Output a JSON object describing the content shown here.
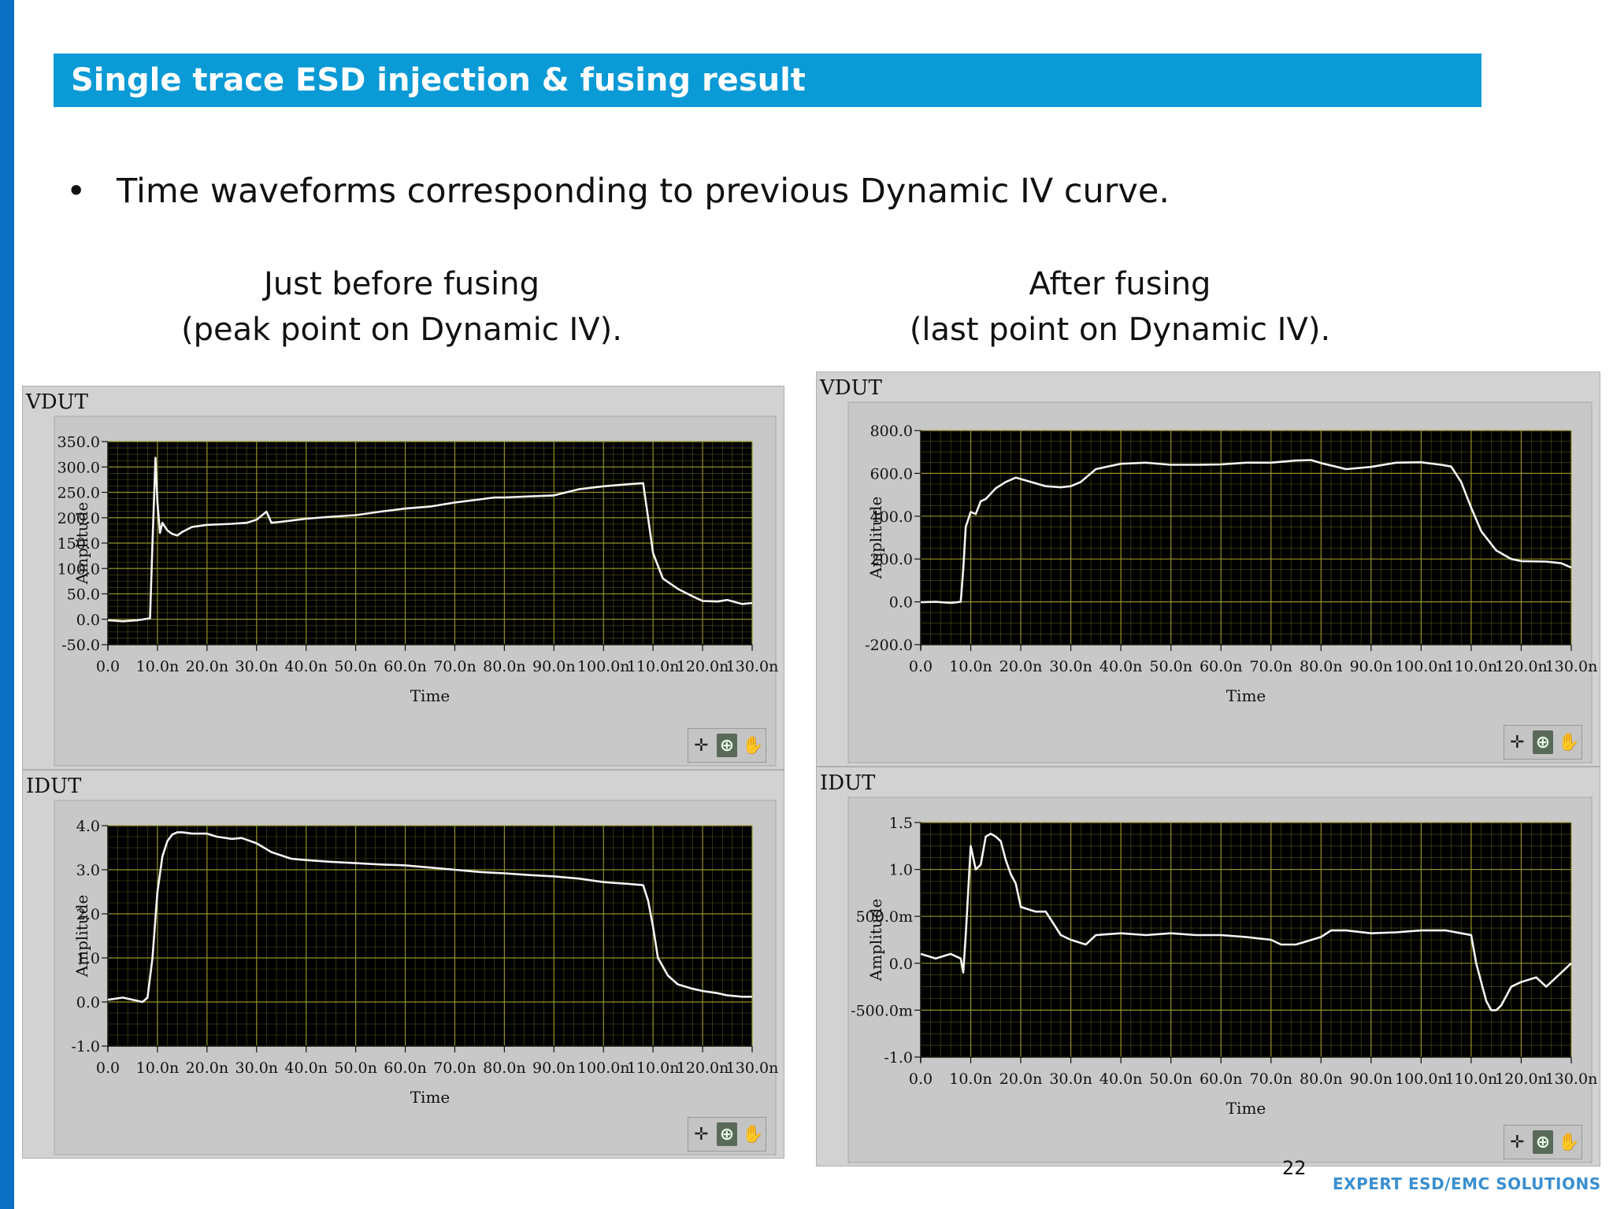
{
  "slide": {
    "title": "Single trace ESD injection & fusing result",
    "bullet": "Time waveforms corresponding to previous Dynamic IV curve.",
    "bullet_symbol": "•",
    "left_caption": [
      "Just before fusing",
      "(peak point on Dynamic IV)."
    ],
    "right_caption": [
      "After fusing",
      "(last point on Dynamic IV)."
    ],
    "page_number": "22",
    "brand": "EXPERT ESD/EMC SOLUTIONS",
    "colors": {
      "title_bar": "#0a9ad6",
      "left_bar": "#0b6fc4",
      "plot_bg": "#000000",
      "grid": "#9a9a2a",
      "trace": "#f4f4f4"
    },
    "toolbar_icons": [
      "crosshair-icon",
      "zoom-icon",
      "hand-icon"
    ],
    "toolbar_glyphs": [
      "✛",
      "⊕",
      "✋"
    ]
  },
  "chart_data": [
    {
      "id": "vdut_before",
      "type": "line",
      "title": "VDUT",
      "xlabel": "Time",
      "ylabel": "Amplitude",
      "xlim": [
        0,
        130
      ],
      "ylim": [
        -50,
        350
      ],
      "xticks": [
        "0.0",
        "10.0n",
        "20.0n",
        "30.0n",
        "40.0n",
        "50.0n",
        "60.0n",
        "70.0n",
        "80.0n",
        "90.0n",
        "100.0n",
        "110.0n",
        "120.0n",
        "130.0n"
      ],
      "yticks": [
        {
          "v": 350,
          "l": "350.0"
        },
        {
          "v": 300,
          "l": "300.0"
        },
        {
          "v": 250,
          "l": "250.0"
        },
        {
          "v": 200,
          "l": "200.0"
        },
        {
          "v": 150,
          "l": "150.0"
        },
        {
          "v": 100,
          "l": "100.0"
        },
        {
          "v": 50,
          "l": "50.0"
        },
        {
          "v": 0,
          "l": "0.0"
        },
        {
          "v": -50,
          "l": "-50.0"
        }
      ],
      "x": [
        0,
        3,
        6,
        8.5,
        9,
        9.6,
        10,
        10.5,
        11,
        12,
        13,
        14,
        15,
        17,
        20,
        25,
        28,
        30,
        32,
        33,
        35,
        40,
        45,
        50,
        55,
        60,
        65,
        70,
        75,
        78,
        80,
        85,
        90,
        95,
        100,
        105,
        108,
        109,
        110,
        112,
        115,
        118,
        120,
        123,
        125,
        128,
        130
      ],
      "y": [
        -2,
        -4,
        -2,
        2,
        150,
        318,
        230,
        170,
        190,
        175,
        168,
        165,
        172,
        182,
        186,
        188,
        190,
        196,
        212,
        190,
        192,
        198,
        202,
        205,
        212,
        218,
        222,
        230,
        236,
        240,
        240,
        242,
        244,
        256,
        262,
        266,
        268,
        200,
        130,
        80,
        60,
        45,
        36,
        35,
        38,
        30,
        32
      ]
    },
    {
      "id": "idut_before",
      "type": "line",
      "title": "IDUT",
      "xlabel": "Time",
      "ylabel": "Amplitude",
      "xlim": [
        0,
        130
      ],
      "ylim": [
        -1,
        4
      ],
      "xticks": [
        "0.0",
        "10.0n",
        "20.0n",
        "30.0n",
        "40.0n",
        "50.0n",
        "60.0n",
        "70.0n",
        "80.0n",
        "90.0n",
        "100.0n",
        "110.0n",
        "120.0n",
        "130.0n"
      ],
      "yticks": [
        {
          "v": 4,
          "l": "4.0"
        },
        {
          "v": 3,
          "l": "3.0"
        },
        {
          "v": 2,
          "l": "2.0"
        },
        {
          "v": 1,
          "l": "1.0"
        },
        {
          "v": 0,
          "l": "0.0"
        },
        {
          "v": -1,
          "l": "-1.0"
        }
      ],
      "x": [
        0,
        3,
        5,
        7,
        8,
        9,
        10,
        11,
        12,
        13,
        14,
        15,
        17,
        20,
        22,
        25,
        27,
        30,
        33,
        37,
        40,
        45,
        50,
        55,
        60,
        65,
        70,
        75,
        80,
        85,
        90,
        95,
        100,
        105,
        108,
        109,
        110,
        111,
        113,
        115,
        118,
        120,
        123,
        125,
        128,
        130
      ],
      "y": [
        0.05,
        0.1,
        0.05,
        0.0,
        0.1,
        1.0,
        2.5,
        3.3,
        3.65,
        3.8,
        3.85,
        3.85,
        3.82,
        3.82,
        3.75,
        3.7,
        3.72,
        3.6,
        3.4,
        3.25,
        3.22,
        3.18,
        3.15,
        3.12,
        3.1,
        3.05,
        3.0,
        2.95,
        2.92,
        2.88,
        2.85,
        2.8,
        2.72,
        2.68,
        2.65,
        2.3,
        1.7,
        1.0,
        0.6,
        0.4,
        0.3,
        0.25,
        0.2,
        0.15,
        0.12,
        0.12
      ]
    },
    {
      "id": "vdut_after",
      "type": "line",
      "title": "VDUT",
      "xlabel": "Time",
      "ylabel": "Amplitude",
      "xlim": [
        0,
        130
      ],
      "ylim": [
        -200,
        800
      ],
      "xticks": [
        "0.0",
        "10.0n",
        "20.0n",
        "30.0n",
        "40.0n",
        "50.0n",
        "60.0n",
        "70.0n",
        "80.0n",
        "90.0n",
        "100.0n",
        "110.0n",
        "120.0n",
        "130.0n"
      ],
      "yticks": [
        {
          "v": 800,
          "l": "800.0"
        },
        {
          "v": 600,
          "l": "600.0"
        },
        {
          "v": 400,
          "l": "400.0"
        },
        {
          "v": 200,
          "l": "200.0"
        },
        {
          "v": 0,
          "l": "0.0"
        },
        {
          "v": -200,
          "l": "-200.0"
        }
      ],
      "x": [
        0,
        3,
        6,
        8,
        8.5,
        9,
        10,
        11,
        12,
        13,
        15,
        17,
        19,
        22,
        25,
        28,
        30,
        32,
        35,
        38,
        40,
        45,
        50,
        55,
        60,
        65,
        70,
        75,
        78,
        80,
        85,
        90,
        95,
        100,
        104,
        106,
        108,
        110,
        112,
        115,
        118,
        120,
        125,
        128,
        130
      ],
      "y": [
        -2,
        0,
        -5,
        0,
        150,
        350,
        420,
        410,
        470,
        480,
        530,
        560,
        580,
        560,
        540,
        535,
        540,
        560,
        620,
        635,
        645,
        650,
        640,
        640,
        642,
        650,
        650,
        660,
        662,
        648,
        620,
        630,
        650,
        652,
        640,
        632,
        560,
        440,
        330,
        240,
        200,
        190,
        188,
        180,
        160
      ]
    },
    {
      "id": "idut_after",
      "type": "line",
      "title": "IDUT",
      "xlabel": "Time",
      "ylabel": "Amplitude",
      "xlim": [
        0,
        130
      ],
      "ylim": [
        -1,
        1.5
      ],
      "xticks": [
        "0.0",
        "10.0n",
        "20.0n",
        "30.0n",
        "40.0n",
        "50.0n",
        "60.0n",
        "70.0n",
        "80.0n",
        "90.0n",
        "100.0n",
        "110.0n",
        "120.0n",
        "130.0n"
      ],
      "yticks": [
        {
          "v": 1.5,
          "l": "1.5"
        },
        {
          "v": 1,
          "l": "1.0"
        },
        {
          "v": 0.5,
          "l": "500.0m"
        },
        {
          "v": 0,
          "l": "0.0"
        },
        {
          "v": -0.5,
          "l": "-500.0m"
        },
        {
          "v": -1,
          "l": "-1.0"
        }
      ],
      "x": [
        0,
        3,
        6,
        8,
        8.5,
        9,
        10,
        11,
        12,
        13,
        14,
        15,
        16,
        17,
        18,
        19,
        20,
        23,
        25,
        28,
        30,
        33,
        35,
        40,
        45,
        50,
        55,
        60,
        65,
        70,
        72,
        75,
        80,
        82,
        85,
        90,
        95,
        100,
        105,
        108,
        110,
        111,
        112,
        113,
        114,
        115,
        116,
        117,
        118,
        120,
        123,
        125,
        127,
        130
      ],
      "y": [
        0.1,
        0.05,
        0.1,
        0.05,
        -0.1,
        0.3,
        1.25,
        1.0,
        1.05,
        1.35,
        1.38,
        1.35,
        1.3,
        1.1,
        0.95,
        0.85,
        0.6,
        0.55,
        0.55,
        0.3,
        0.25,
        0.2,
        0.3,
        0.32,
        0.3,
        0.32,
        0.3,
        0.3,
        0.28,
        0.25,
        0.2,
        0.2,
        0.28,
        0.35,
        0.35,
        0.32,
        0.33,
        0.35,
        0.35,
        0.32,
        0.3,
        0.0,
        -0.2,
        -0.4,
        -0.5,
        -0.5,
        -0.45,
        -0.35,
        -0.25,
        -0.2,
        -0.15,
        -0.25,
        -0.15,
        0.0
      ]
    }
  ]
}
